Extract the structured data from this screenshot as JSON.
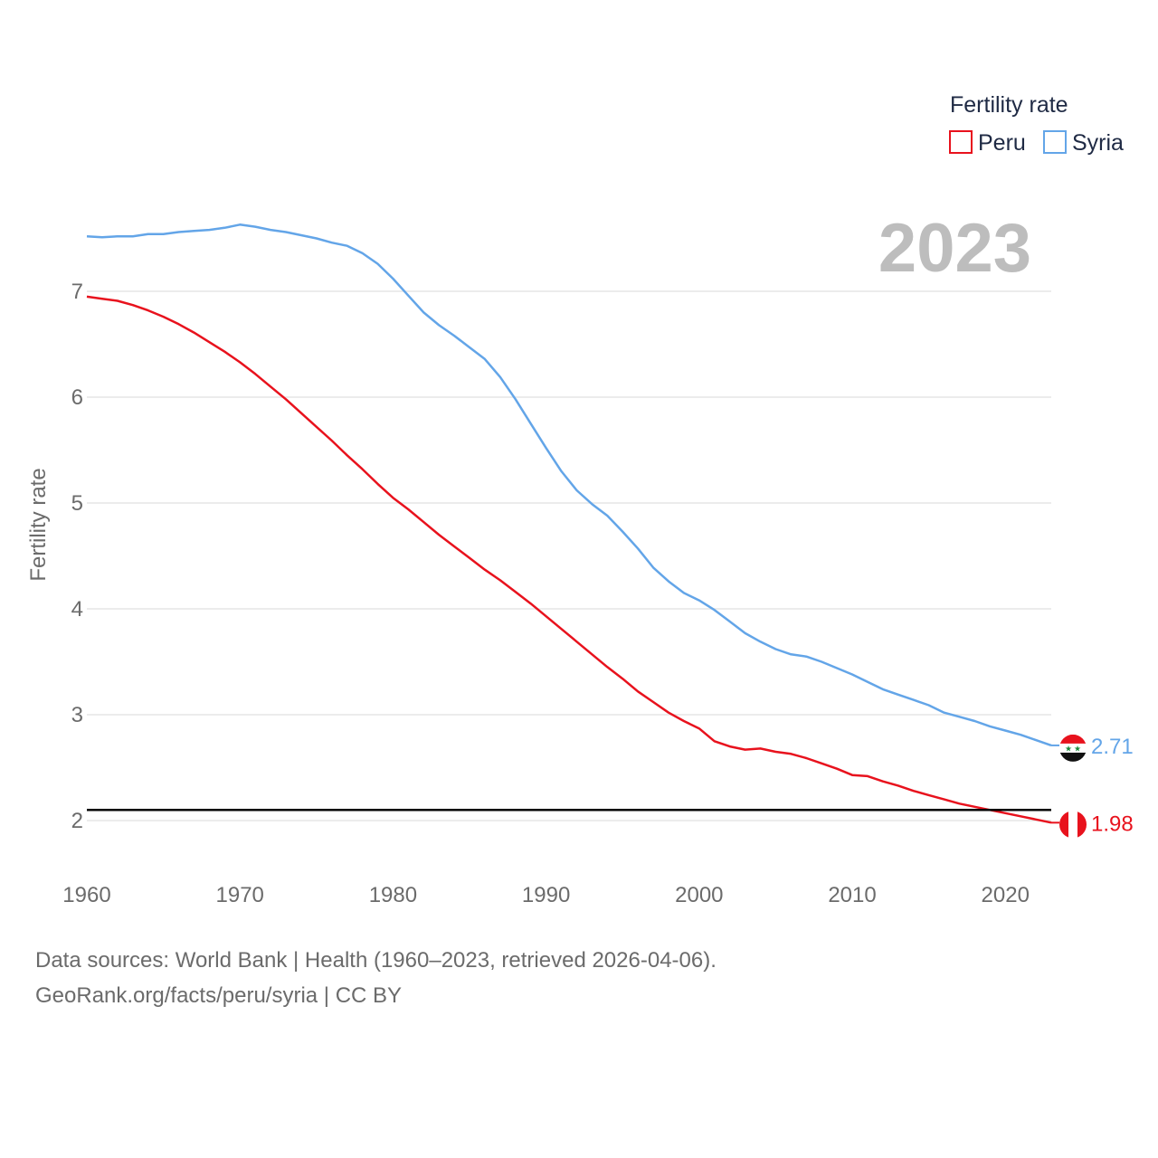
{
  "chart_data": {
    "type": "line",
    "title": "",
    "ylabel": "Fertility rate",
    "xlabel": "",
    "xlim": [
      1960,
      2023
    ],
    "ylim": [
      1.6,
      7.85
    ],
    "xticks": [
      1960,
      1970,
      1980,
      1990,
      2000,
      2010,
      2020
    ],
    "yticks": [
      2,
      3,
      4,
      5,
      6,
      7
    ],
    "grid": true,
    "legend": {
      "title": "Fertility rate",
      "position": "top-right"
    },
    "year_label": "2023",
    "reference_line": {
      "y": 2.1,
      "color": "#000000"
    },
    "x": [
      1960,
      1961,
      1962,
      1963,
      1964,
      1965,
      1966,
      1967,
      1968,
      1969,
      1970,
      1971,
      1972,
      1973,
      1974,
      1975,
      1976,
      1977,
      1978,
      1979,
      1980,
      1981,
      1982,
      1983,
      1984,
      1985,
      1986,
      1987,
      1988,
      1989,
      1990,
      1991,
      1992,
      1993,
      1994,
      1995,
      1996,
      1997,
      1998,
      1999,
      2000,
      2001,
      2002,
      2003,
      2004,
      2005,
      2006,
      2007,
      2008,
      2009,
      2010,
      2011,
      2012,
      2013,
      2014,
      2015,
      2016,
      2017,
      2018,
      2019,
      2020,
      2021,
      2022,
      2023
    ],
    "series": [
      {
        "name": "Peru",
        "color": "#e8121d",
        "end_label": "1.98",
        "flag_icon": "peru-flag-icon",
        "values": [
          6.95,
          6.93,
          6.91,
          6.87,
          6.82,
          6.76,
          6.69,
          6.61,
          6.52,
          6.43,
          6.33,
          6.22,
          6.1,
          5.98,
          5.85,
          5.72,
          5.59,
          5.45,
          5.32,
          5.18,
          5.05,
          4.94,
          4.82,
          4.7,
          4.59,
          4.48,
          4.37,
          4.27,
          4.16,
          4.05,
          3.93,
          3.81,
          3.69,
          3.57,
          3.45,
          3.34,
          3.22,
          3.12,
          3.02,
          2.94,
          2.87,
          2.75,
          2.7,
          2.67,
          2.68,
          2.65,
          2.63,
          2.59,
          2.54,
          2.49,
          2.43,
          2.42,
          2.37,
          2.33,
          2.28,
          2.24,
          2.2,
          2.16,
          2.13,
          2.1,
          2.07,
          2.04,
          2.01,
          1.98
        ]
      },
      {
        "name": "Syria",
        "color": "#63a5e8",
        "end_label": "2.71",
        "flag_icon": "syria-flag-icon",
        "values": [
          7.52,
          7.51,
          7.52,
          7.52,
          7.54,
          7.54,
          7.56,
          7.57,
          7.58,
          7.6,
          7.63,
          7.61,
          7.58,
          7.56,
          7.53,
          7.5,
          7.46,
          7.43,
          7.36,
          7.26,
          7.12,
          6.96,
          6.8,
          6.68,
          6.58,
          6.47,
          6.36,
          6.19,
          5.98,
          5.75,
          5.52,
          5.3,
          5.12,
          4.99,
          4.88,
          4.73,
          4.57,
          4.39,
          4.26,
          4.15,
          4.08,
          3.99,
          3.88,
          3.77,
          3.69,
          3.62,
          3.57,
          3.55,
          3.5,
          3.44,
          3.38,
          3.31,
          3.24,
          3.19,
          3.14,
          3.09,
          3.02,
          2.98,
          2.94,
          2.89,
          2.85,
          2.81,
          2.76,
          2.71
        ]
      }
    ]
  },
  "footer": {
    "line1": "Data sources: World Bank | Health (1960–2023, retrieved 2026-04-06).",
    "line2": "GeoRank.org/facts/peru/syria | CC BY"
  }
}
